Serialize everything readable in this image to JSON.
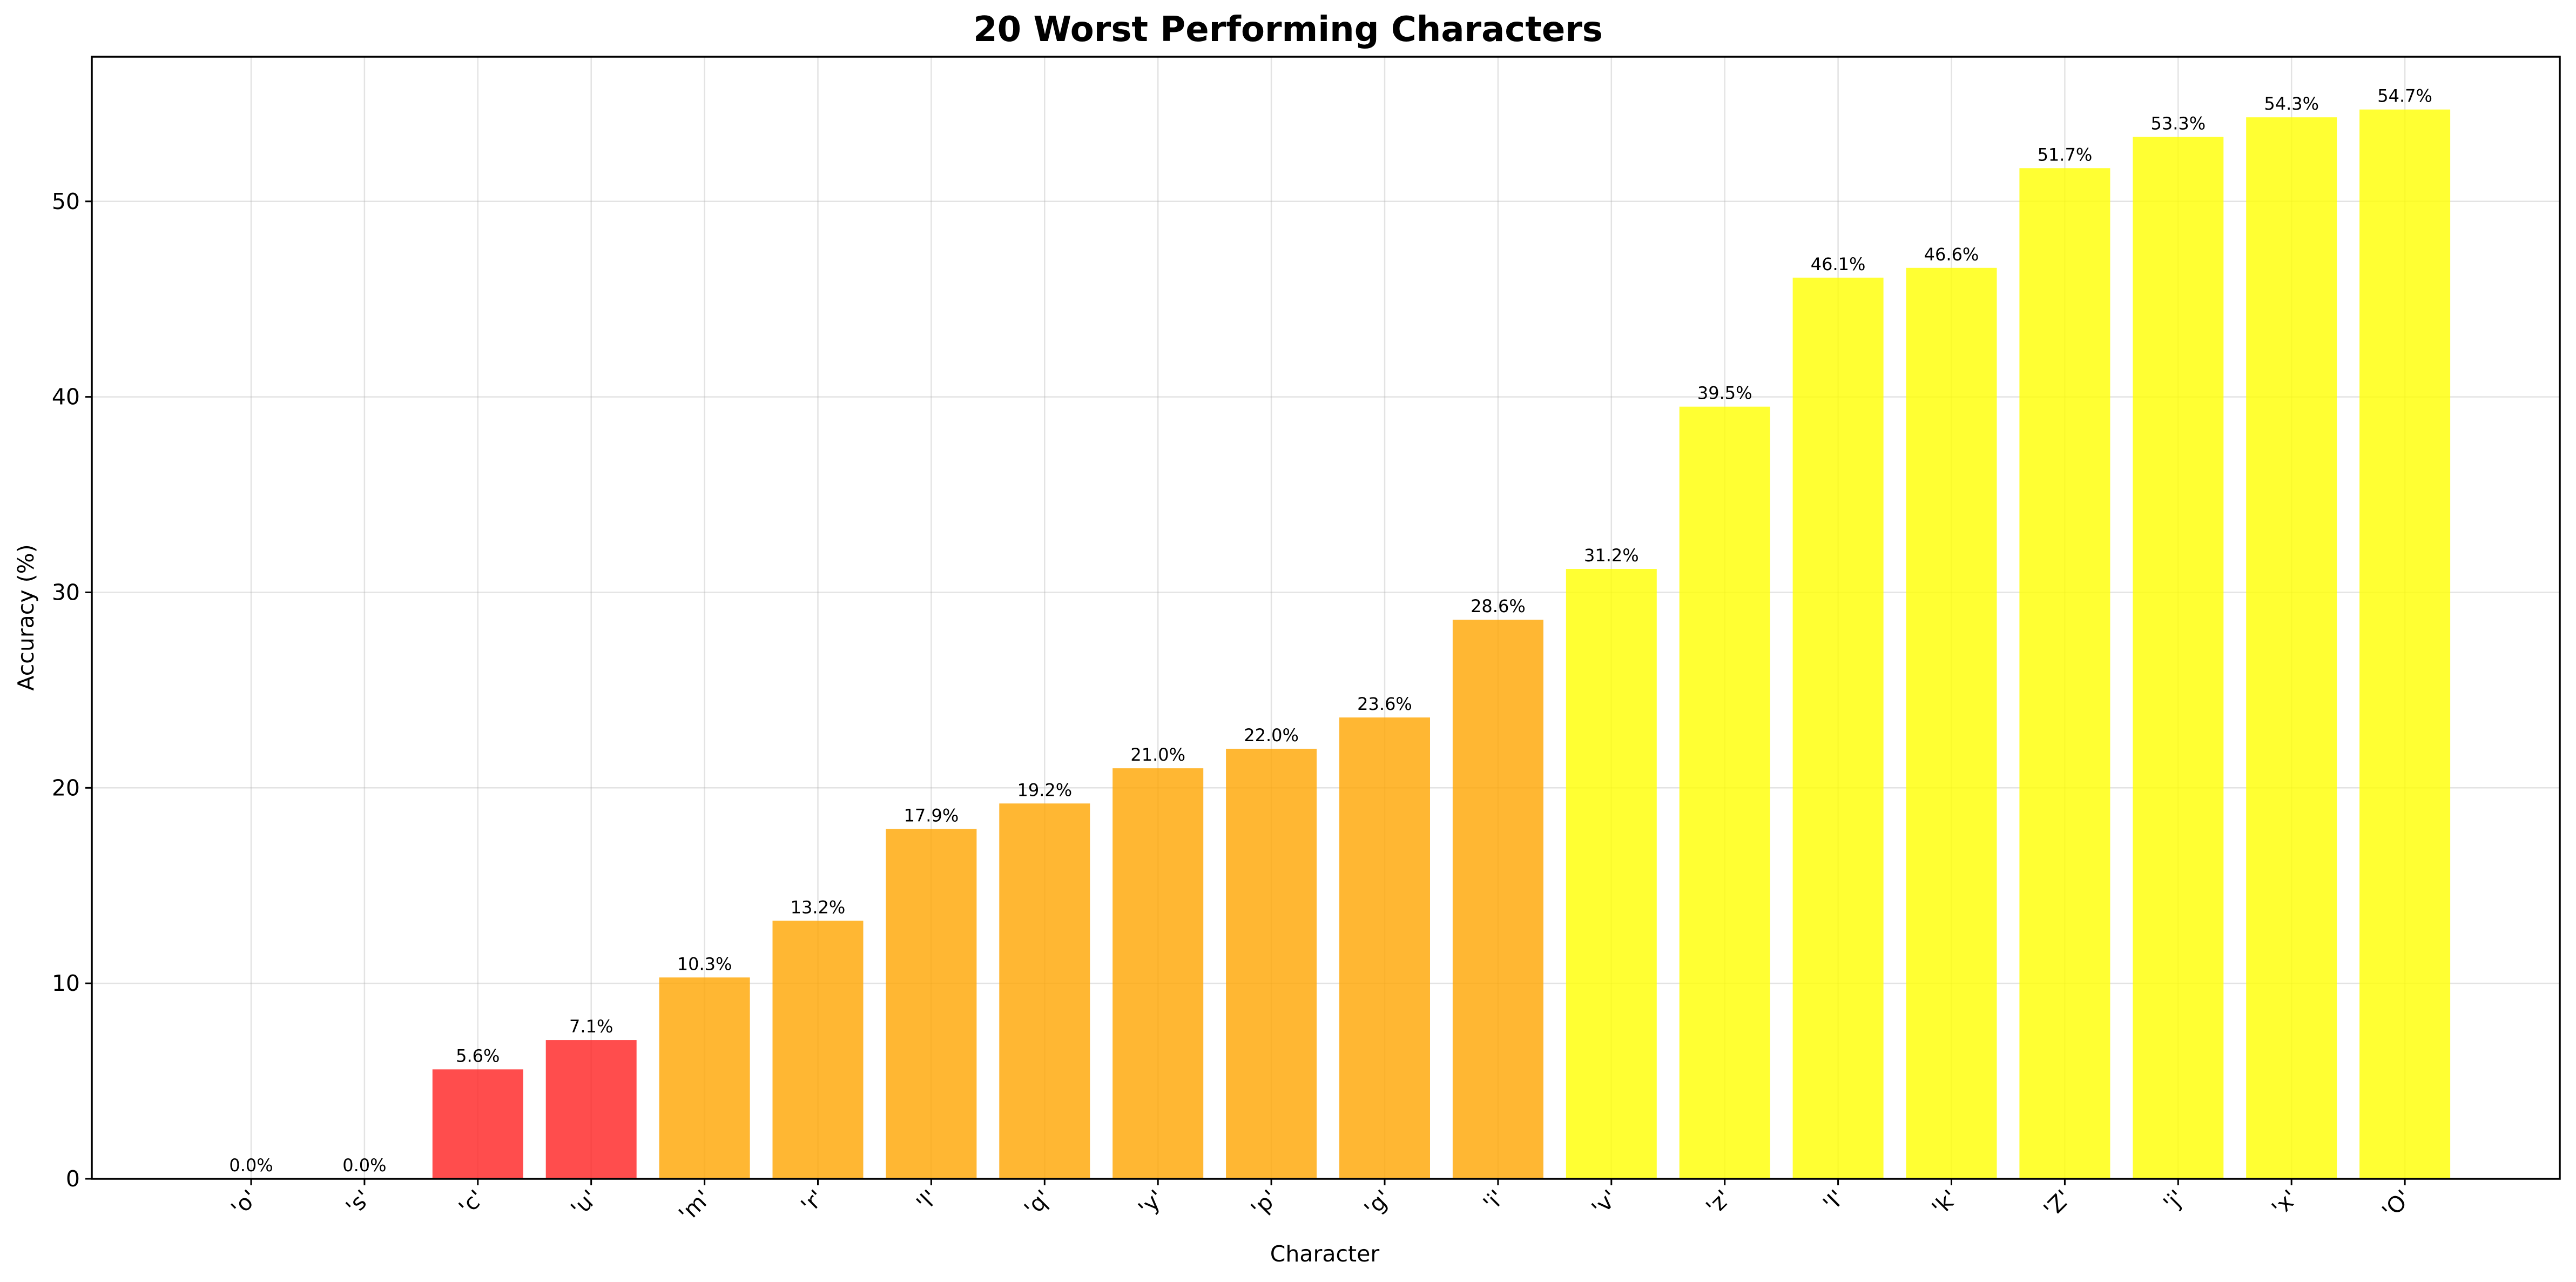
{
  "chart_data": {
    "type": "bar",
    "title": "20 Worst Performing Characters",
    "xlabel": "Character",
    "ylabel": "Accuracy (%)",
    "categories": [
      "'o'",
      "'s'",
      "'c'",
      "'u'",
      "'m'",
      "'r'",
      "'l'",
      "'q'",
      "'y'",
      "'p'",
      "'g'",
      "'i'",
      "'v'",
      "'z'",
      "'I'",
      "'k'",
      "'Z'",
      "'j'",
      "'x'",
      "'O'"
    ],
    "values": [
      0.0,
      0.0,
      5.6,
      7.1,
      10.3,
      13.2,
      17.9,
      19.2,
      21.0,
      22.0,
      23.6,
      28.6,
      31.2,
      39.5,
      46.1,
      46.6,
      51.7,
      53.3,
      54.3,
      54.7
    ],
    "value_labels": [
      "0.0%",
      "0.0%",
      "5.6%",
      "7.1%",
      "10.3%",
      "13.2%",
      "17.9%",
      "19.2%",
      "21.0%",
      "22.0%",
      "23.6%",
      "28.6%",
      "31.2%",
      "39.5%",
      "46.1%",
      "46.6%",
      "51.7%",
      "53.3%",
      "54.3%",
      "54.7%"
    ],
    "bar_colors": [
      "#ff2020",
      "#ff2020",
      "#ff2020",
      "#ff2020",
      "#ffa500",
      "#ffa500",
      "#ffa500",
      "#ffa500",
      "#ffa500",
      "#ffa500",
      "#ffa500",
      "#ffa500",
      "#ffff00",
      "#ffff00",
      "#ffff00",
      "#ffff00",
      "#ffff00",
      "#ffff00",
      "#ffff00",
      "#ffff00"
    ],
    "yticks": [
      0,
      10,
      20,
      30,
      40,
      50
    ],
    "ylim": [
      0,
      57.4
    ],
    "grid": true
  }
}
